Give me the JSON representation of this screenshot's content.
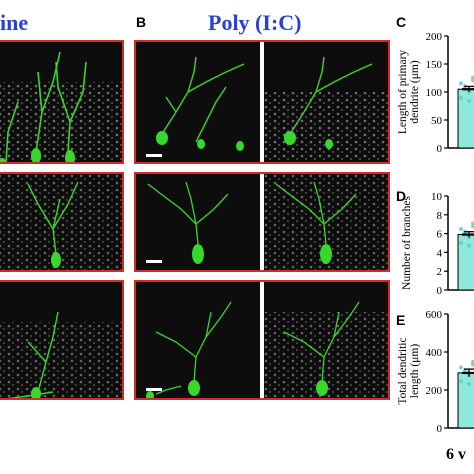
{
  "headers": {
    "left_partial": "ine",
    "right": "Poly (I:C)"
  },
  "panel_labels": {
    "b": "B",
    "c": "C",
    "d": "D",
    "e": "E"
  },
  "bottom_label": "6 v",
  "colors": {
    "header_blue": "#2b3fd6",
    "frame_red": "#d42a2a",
    "neuron_green": "#39d62b",
    "bar_cyan": "#8ee8dc"
  },
  "chart_data": [
    {
      "panel": "C",
      "type": "bar",
      "ylabel_lines": [
        "Length of primary",
        "dendrite (μm)"
      ],
      "yticks": [
        "0",
        "50",
        "100",
        "150",
        "200"
      ],
      "ylim": [
        0,
        200
      ],
      "values": [
        105
      ],
      "error": 5
    },
    {
      "panel": "D",
      "type": "bar",
      "ylabel_lines": [
        "Number of branches"
      ],
      "yticks": [
        "0",
        "2",
        "4",
        "6",
        "8",
        "10"
      ],
      "ylim": [
        0,
        10
      ],
      "values": [
        5.9
      ],
      "error": 0.3
    },
    {
      "panel": "E",
      "type": "bar",
      "ylabel_lines": [
        "Total dendritic",
        "length (μm)"
      ],
      "yticks": [
        "0",
        "200",
        "400",
        "600"
      ],
      "ylim": [
        0,
        600
      ],
      "values": [
        290
      ],
      "error": 20
    }
  ]
}
